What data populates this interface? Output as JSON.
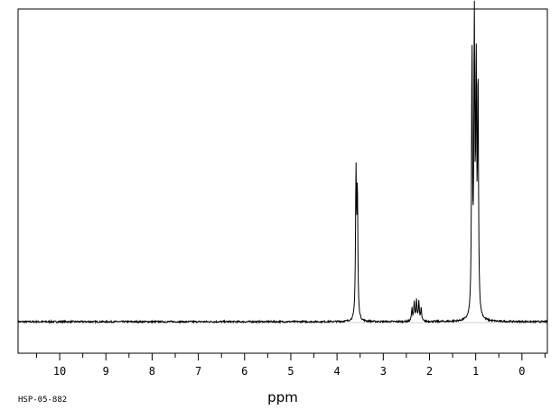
{
  "chart_data": {
    "type": "line",
    "title": "",
    "xlabel": "ppm",
    "ylabel": "",
    "xlim": [
      10.9,
      -0.55
    ],
    "ylim": [
      0,
      1
    ],
    "x_reversed": true,
    "grid": false,
    "x_ticks": [
      10,
      9,
      8,
      7,
      6,
      5,
      4,
      3,
      2,
      1,
      0
    ],
    "x_tick_labels": [
      "10",
      "9",
      "8",
      "7",
      "6",
      "5",
      "4",
      "3",
      "2",
      "1",
      "0"
    ],
    "series": [
      {
        "peaks": [
          {
            "x": 3.59,
            "y": 0.5
          },
          {
            "x": 3.56,
            "y": 0.44
          },
          {
            "x": 2.38,
            "y": 0.045
          },
          {
            "x": 2.33,
            "y": 0.065
          },
          {
            "x": 2.28,
            "y": 0.075
          },
          {
            "x": 2.23,
            "y": 0.065
          },
          {
            "x": 2.18,
            "y": 0.045
          },
          {
            "x": 1.08,
            "y": 0.92
          },
          {
            "x": 1.03,
            "y": 1.0
          },
          {
            "x": 0.99,
            "y": 0.84
          },
          {
            "x": 0.95,
            "y": 0.82
          }
        ],
        "peak_width": 0.012
      }
    ]
  },
  "footer": {
    "code": "HSP-05-882"
  }
}
